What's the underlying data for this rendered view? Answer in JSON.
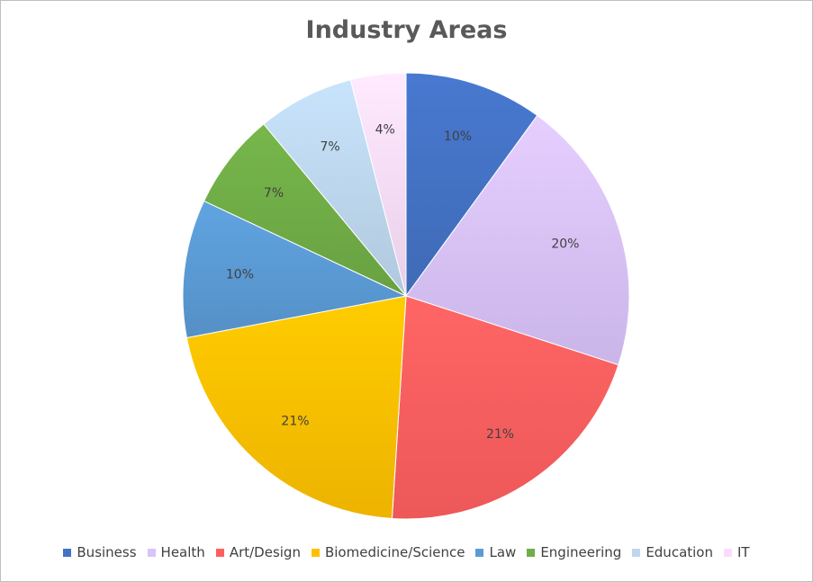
{
  "chart_data": {
    "type": "pie",
    "title": "Industry Areas",
    "categories": [
      "Business",
      "Health",
      "Art/Design",
      "Biomedicine/Science",
      "Law",
      "Engineering",
      "Education",
      "IT"
    ],
    "values": [
      10,
      20,
      21,
      21,
      10,
      7,
      7,
      4
    ],
    "labels": [
      "10%",
      "20%",
      "21%",
      "21%",
      "10%",
      "7%",
      "7%",
      "4%"
    ],
    "colors": [
      "#4472C4",
      "#D9C3FB",
      "#FF5F5F",
      "#FFC000",
      "#5B9BD5",
      "#70AD47",
      "#BDD7EE",
      "#FBDDFB"
    ],
    "legend_position": "bottom",
    "start_angle": "12 o'clock, clockwise"
  }
}
